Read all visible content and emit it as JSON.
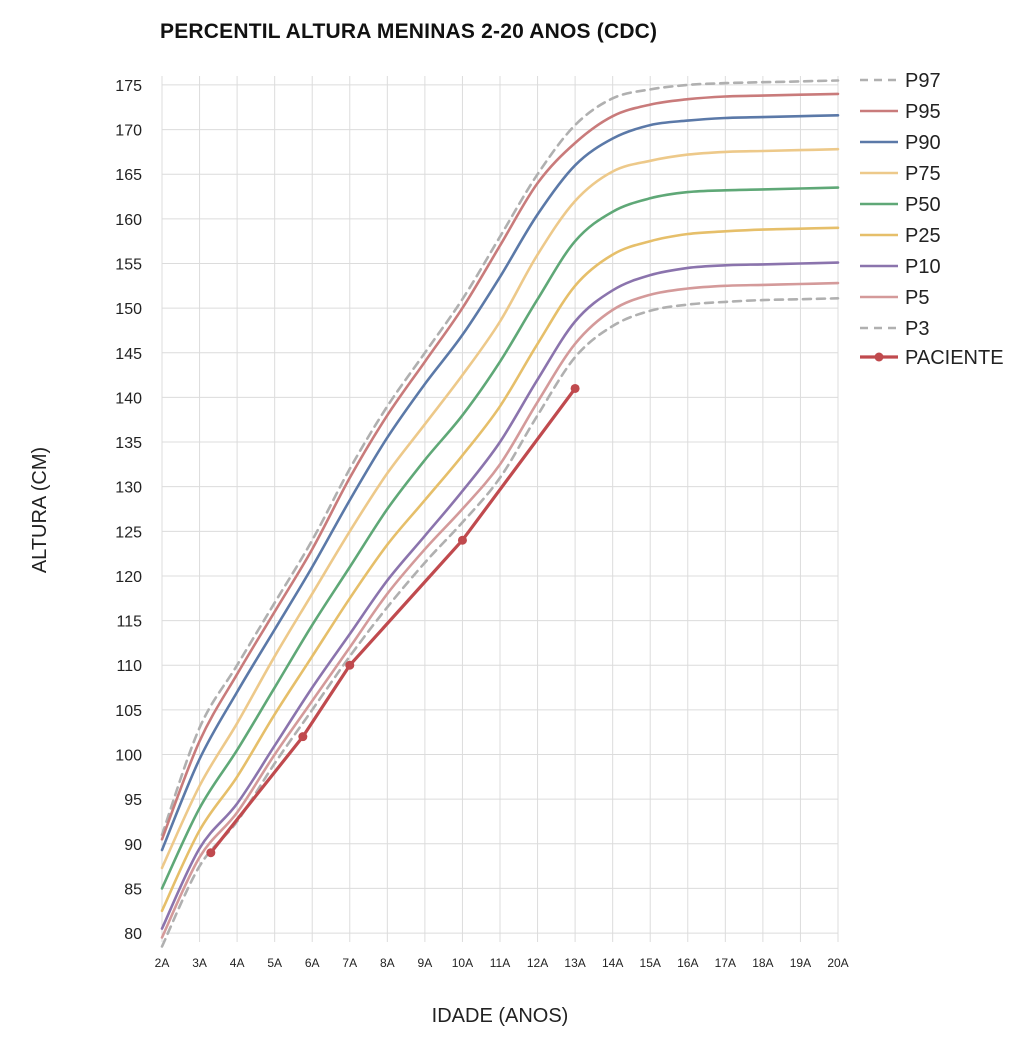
{
  "chart_data": {
    "type": "line",
    "title": "PERCENTIL ALTURA MENINAS 2-20 ANOS (CDC)",
    "xlabel": "IDADE (ANOS)",
    "ylabel": "ALTURA (CM)",
    "xlim": [
      2,
      20
    ],
    "ylim": [
      79,
      176
    ],
    "grid": true,
    "legend_position": "right",
    "x_ticks": [
      2,
      3,
      4,
      5,
      6,
      7,
      8,
      9,
      10,
      11,
      12,
      13,
      14,
      15,
      16,
      17,
      18,
      19,
      20
    ],
    "x_tick_labels": [
      "2A",
      "3A",
      "4A",
      "5A",
      "6A",
      "7A",
      "8A",
      "9A",
      "10A",
      "11A",
      "12A",
      "13A",
      "14A",
      "15A",
      "16A",
      "17A",
      "18A",
      "19A",
      "20A"
    ],
    "y_ticks": [
      80,
      85,
      90,
      95,
      100,
      105,
      110,
      115,
      120,
      125,
      130,
      135,
      140,
      145,
      150,
      155,
      160,
      165,
      170,
      175
    ],
    "x": [
      2,
      3,
      4,
      5,
      6,
      7,
      8,
      9,
      10,
      11,
      12,
      13,
      14,
      15,
      16,
      17,
      18,
      19,
      20
    ],
    "series": [
      {
        "name": "P97",
        "color": "#b0b0b0",
        "dashed": true,
        "values": [
          91,
          103,
          110,
          117,
          124,
          132,
          139,
          145,
          151,
          158,
          165,
          170.5,
          173.5,
          174.5,
          175,
          175.2,
          175.3,
          175.4,
          175.5
        ]
      },
      {
        "name": "P95",
        "color": "#c97b7b",
        "dashed": false,
        "values": [
          90.5,
          101.5,
          109,
          116,
          123,
          131,
          138,
          144,
          150,
          157,
          164,
          168.5,
          171.5,
          172.8,
          173.4,
          173.7,
          173.8,
          173.9,
          174
        ]
      },
      {
        "name": "P90",
        "color": "#5b79a8",
        "dashed": false,
        "values": [
          89.3,
          99.5,
          107,
          114,
          121,
          128.5,
          135.5,
          141.5,
          147,
          153.5,
          160.5,
          166,
          169,
          170.5,
          171,
          171.3,
          171.4,
          171.5,
          171.6
        ]
      },
      {
        "name": "P75",
        "color": "#edc98a",
        "dashed": false,
        "values": [
          87.3,
          96.5,
          103.5,
          111,
          118,
          125,
          131.5,
          137,
          142.5,
          148.5,
          156,
          162,
          165.3,
          166.5,
          167.2,
          167.5,
          167.6,
          167.7,
          167.8
        ]
      },
      {
        "name": "P50",
        "color": "#5fa877",
        "dashed": false,
        "values": [
          85,
          94,
          100.5,
          107.5,
          114.5,
          121,
          127.5,
          133,
          138,
          144,
          151,
          157.5,
          160.8,
          162.3,
          163,
          163.2,
          163.3,
          163.4,
          163.5
        ]
      },
      {
        "name": "P25",
        "color": "#e6bf6a",
        "dashed": false,
        "values": [
          82.5,
          91.5,
          97.5,
          104.5,
          111,
          117.5,
          123.5,
          128.5,
          133.5,
          139,
          146,
          152.5,
          156,
          157.5,
          158.3,
          158.6,
          158.8,
          158.9,
          159
        ]
      },
      {
        "name": "P10",
        "color": "#8b74ad",
        "dashed": false,
        "values": [
          80.5,
          89.5,
          94.5,
          101,
          107.5,
          113.5,
          119.5,
          124.5,
          129.5,
          135,
          142,
          148.5,
          152,
          153.7,
          154.5,
          154.8,
          154.9,
          155,
          155.1
        ]
      },
      {
        "name": "P5",
        "color": "#d49a9a",
        "dashed": false,
        "values": [
          79.5,
          88.5,
          93.5,
          100,
          106,
          112,
          118,
          123,
          127.5,
          132.5,
          139.5,
          146,
          149.8,
          151.5,
          152.2,
          152.5,
          152.6,
          152.7,
          152.8
        ]
      },
      {
        "name": "P3",
        "color": "#b0b0b0",
        "dashed": true,
        "values": [
          78.5,
          87.5,
          92.5,
          99,
          105,
          111,
          116.5,
          121.5,
          126,
          131,
          138,
          144.5,
          148,
          149.7,
          150.4,
          150.7,
          150.9,
          151,
          151.1
        ]
      }
    ],
    "patient": {
      "name": "PACIENTE",
      "color": "#c04a4e",
      "x": [
        3.3,
        5.75,
        7,
        10,
        13
      ],
      "y": [
        89,
        102,
        110,
        124,
        141
      ]
    }
  }
}
